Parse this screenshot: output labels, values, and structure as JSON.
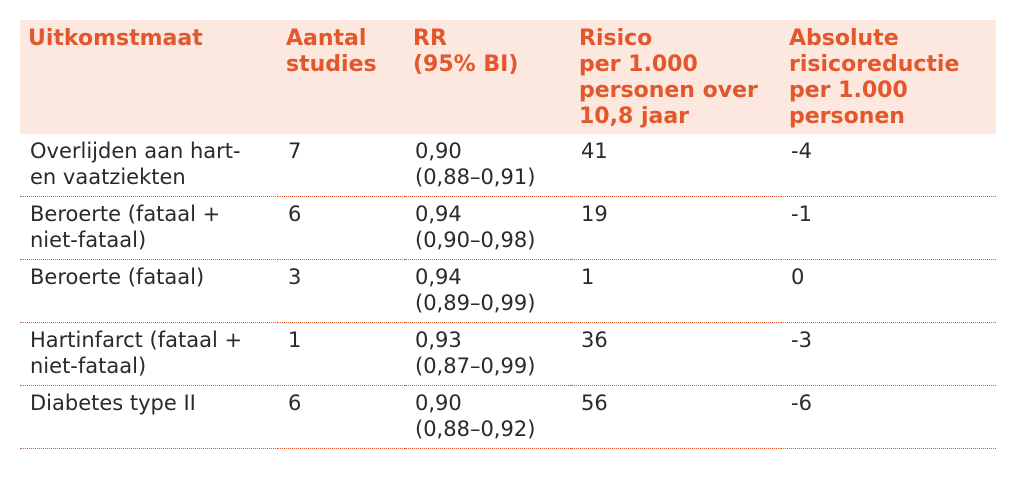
{
  "table": {
    "headers": [
      [
        "Uitkomstmaat"
      ],
      [
        "Aantal",
        "studies"
      ],
      [
        "RR",
        "(95% BI)"
      ],
      [
        "Risico",
        "per 1.000",
        "personen over",
        "10,8 jaar"
      ],
      [
        "Absolute",
        "risicoreductie",
        "per 1.000",
        "personen"
      ]
    ],
    "rows": [
      {
        "outcome": [
          "Overlijden aan hart-",
          "en vaatziekten"
        ],
        "studies": "7",
        "rr": "0,90",
        "ci": "(0,88–0,91)",
        "risk": "41",
        "arr": "-4"
      },
      {
        "outcome": [
          "Beroerte (fataal +",
          "niet-fataal)"
        ],
        "studies": "6",
        "rr": "0,94",
        "ci": "(0,90–0,98)",
        "risk": "19",
        "arr": "-1"
      },
      {
        "outcome": [
          "Beroerte (fataal)"
        ],
        "studies": "3",
        "rr": "0,94",
        "ci": "(0,89–0,99)",
        "risk": "1",
        "arr": "0"
      },
      {
        "outcome": [
          "Hartinfarct (fataal +",
          "niet-fataal)"
        ],
        "studies": "1",
        "rr": "0,93",
        "ci": "(0,87–0,99)",
        "risk": "36",
        "arr": "-3"
      },
      {
        "outcome": [
          "Diabetes type II"
        ],
        "studies": "6",
        "rr": "0,90",
        "ci": "(0,88–0,92)",
        "risk": "56",
        "arr": "-6"
      }
    ]
  },
  "colors": {
    "header_bg": "#fde8df",
    "header_text": "#e2572c",
    "body_text": "#2a2a2a",
    "divider": "#e2572c"
  }
}
